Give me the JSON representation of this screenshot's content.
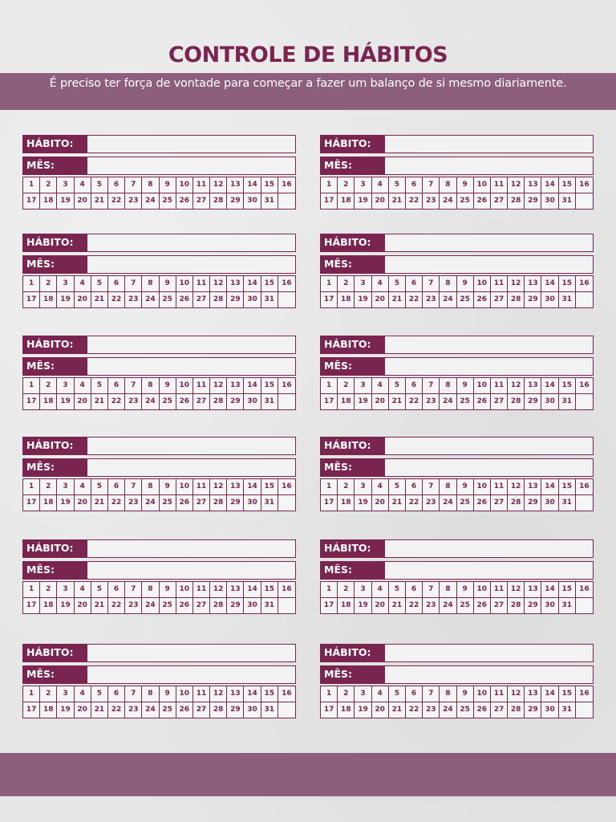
{
  "title": "CONTROLE DE HÁBITOS",
  "subtitle": "É preciso ter força de vontade para começar a fazer um balanço de si mesmo diariamente.",
  "labels": {
    "habit": "HÁBITO:",
    "month": "MÊS:"
  },
  "days_row1": [
    "1",
    "2",
    "3",
    "4",
    "5",
    "6",
    "7",
    "8",
    "9",
    "10",
    "11",
    "12",
    "13",
    "14",
    "15",
    "16"
  ],
  "days_row2": [
    "17",
    "18",
    "19",
    "20",
    "21",
    "22",
    "23",
    "24",
    "25",
    "26",
    "27",
    "28",
    "29",
    "30",
    "31",
    ""
  ],
  "colors": {
    "primary": "#7a2550",
    "band": "#8d5f7d",
    "background": "#e6e6e6"
  },
  "card_count": 12
}
